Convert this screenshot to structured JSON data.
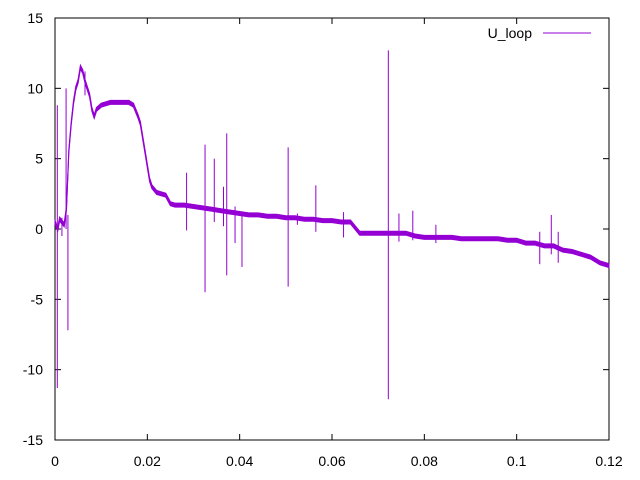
{
  "chart_data": {
    "type": "line",
    "title": "",
    "xlabel": "",
    "ylabel": "",
    "xlim": [
      0,
      0.12
    ],
    "ylim": [
      -15,
      15
    ],
    "x_ticks": [
      0,
      0.02,
      0.04,
      0.06,
      0.08,
      0.1,
      0.12
    ],
    "x_tick_labels": [
      "0",
      "0.02",
      "0.04",
      "0.06",
      "0.08",
      "0.1",
      "0.12"
    ],
    "y_ticks": [
      -15,
      -10,
      -5,
      0,
      5,
      10,
      15
    ],
    "y_tick_labels": [
      "-15",
      "-10",
      "-5",
      "0",
      "5",
      "10",
      "15"
    ],
    "grid": false,
    "legend_position": "top-right",
    "series": [
      {
        "name": "U_loop",
        "color": "#9400d3",
        "x": [
          0,
          0.0003,
          0.0006,
          0.001,
          0.0015,
          0.002,
          0.0025,
          0.003,
          0.0035,
          0.004,
          0.0045,
          0.005,
          0.0055,
          0.006,
          0.0065,
          0.007,
          0.0075,
          0.008,
          0.0085,
          0.009,
          0.01,
          0.012,
          0.014,
          0.016,
          0.017,
          0.018,
          0.0185,
          0.019,
          0.0195,
          0.02,
          0.0205,
          0.021,
          0.0215,
          0.022,
          0.023,
          0.024,
          0.025,
          0.026,
          0.028,
          0.03,
          0.032,
          0.034,
          0.036,
          0.038,
          0.04,
          0.042,
          0.044,
          0.046,
          0.048,
          0.05,
          0.052,
          0.054,
          0.056,
          0.058,
          0.06,
          0.062,
          0.064,
          0.066,
          0.068,
          0.07,
          0.072,
          0.074,
          0.076,
          0.078,
          0.08,
          0.082,
          0.084,
          0.086,
          0.088,
          0.09,
          0.092,
          0.094,
          0.096,
          0.098,
          0.1,
          0.102,
          0.104,
          0.106,
          0.108,
          0.11,
          0.112,
          0.114,
          0.116,
          0.118,
          0.12
        ],
        "y": [
          0.5,
          0.2,
          0,
          0.7,
          0.5,
          0.3,
          1.5,
          5.5,
          7.5,
          9.0,
          10.0,
          10.5,
          11.5,
          11.2,
          10.5,
          10.0,
          9.5,
          8.5,
          8.0,
          8.5,
          8.8,
          9.0,
          9.0,
          9.0,
          8.8,
          8.0,
          7.5,
          6.5,
          5.5,
          4.5,
          3.5,
          3.0,
          2.8,
          2.6,
          2.5,
          2.4,
          1.8,
          1.7,
          1.7,
          1.6,
          1.5,
          1.4,
          1.3,
          1.2,
          1.1,
          1.0,
          1.0,
          0.9,
          0.9,
          0.8,
          0.8,
          0.7,
          0.7,
          0.6,
          0.6,
          0.5,
          0.5,
          -0.3,
          -0.3,
          -0.3,
          -0.3,
          -0.3,
          -0.3,
          -0.5,
          -0.6,
          -0.6,
          -0.6,
          -0.6,
          -0.7,
          -0.7,
          -0.7,
          -0.7,
          -0.7,
          -0.8,
          -0.8,
          -1.0,
          -1.0,
          -1.2,
          -1.2,
          -1.5,
          -1.6,
          -1.8,
          -2.0,
          -2.4,
          -2.6
        ]
      }
    ],
    "spikes": [
      {
        "x": 0.0005,
        "y0": -11.3,
        "y1": 8.8
      },
      {
        "x": 0.0015,
        "y0": -0.5,
        "y1": 0.8
      },
      {
        "x": 0.0024,
        "y0": 0,
        "y1": 10.0
      },
      {
        "x": 0.0028,
        "y0": -7.2,
        "y1": 1.0
      },
      {
        "x": 0.0065,
        "y0": 9.5,
        "y1": 11.2
      },
      {
        "x": 0.0285,
        "y0": -0.1,
        "y1": 4.0
      },
      {
        "x": 0.0325,
        "y0": -4.5,
        "y1": 6.0
      },
      {
        "x": 0.0345,
        "y0": 0.5,
        "y1": 5.0
      },
      {
        "x": 0.0365,
        "y0": 0.2,
        "y1": 3.0
      },
      {
        "x": 0.0372,
        "y0": -3.3,
        "y1": 6.8
      },
      {
        "x": 0.039,
        "y0": -1.0,
        "y1": 1.6
      },
      {
        "x": 0.0405,
        "y0": -2.7,
        "y1": 1.0
      },
      {
        "x": 0.0505,
        "y0": -4.1,
        "y1": 5.8
      },
      {
        "x": 0.0525,
        "y0": 0.3,
        "y1": 1.1
      },
      {
        "x": 0.0565,
        "y0": -0.2,
        "y1": 3.1
      },
      {
        "x": 0.0625,
        "y0": -0.6,
        "y1": 1.2
      },
      {
        "x": 0.0722,
        "y0": -12.1,
        "y1": 12.7
      },
      {
        "x": 0.0745,
        "y0": -0.9,
        "y1": 1.1
      },
      {
        "x": 0.0775,
        "y0": -0.8,
        "y1": 1.3
      },
      {
        "x": 0.0825,
        "y0": -1.0,
        "y1": 0.3
      },
      {
        "x": 0.105,
        "y0": -2.5,
        "y1": -0.2
      },
      {
        "x": 0.1075,
        "y0": -1.8,
        "y1": 1.0
      },
      {
        "x": 0.109,
        "y0": -2.4,
        "y1": -0.2
      }
    ]
  }
}
